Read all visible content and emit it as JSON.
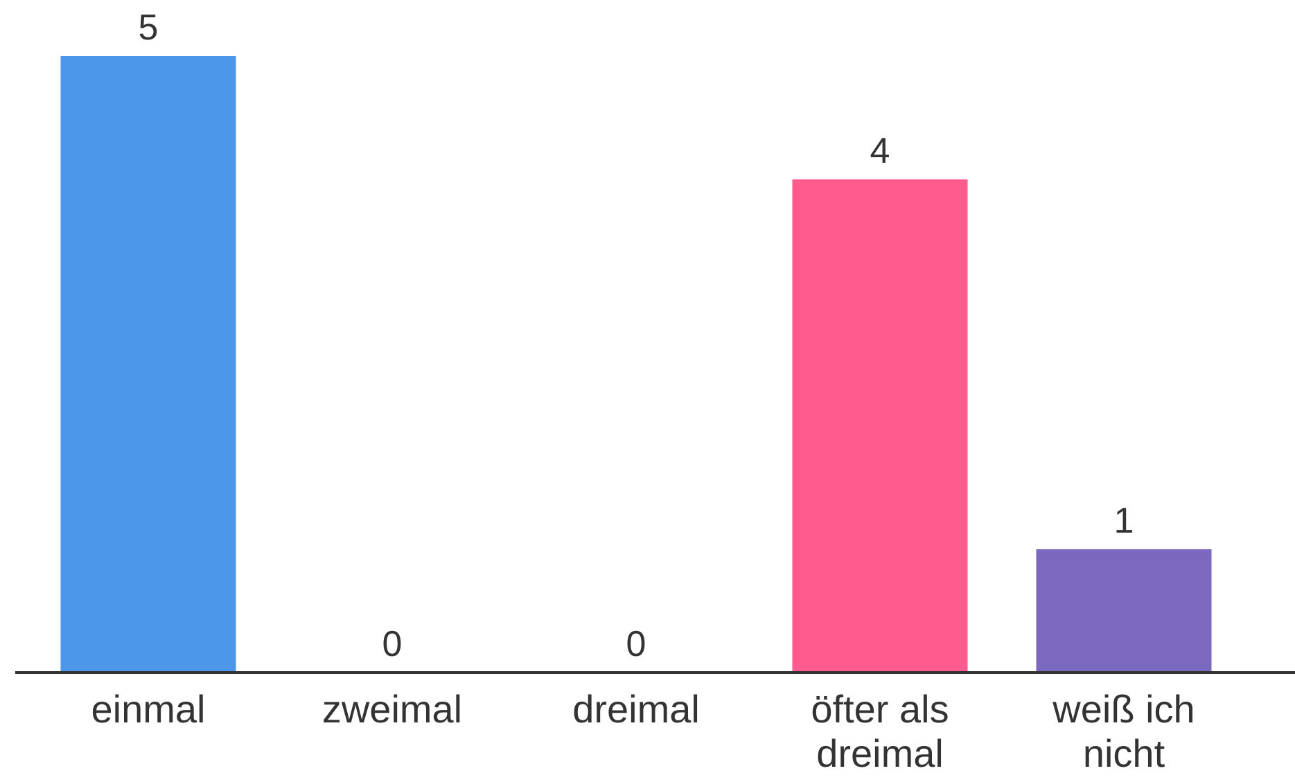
{
  "chart_data": {
    "type": "bar",
    "categories": [
      [
        "einmal"
      ],
      [
        "zweimal"
      ],
      [
        "dreimal"
      ],
      [
        "öfter als",
        "dreimal"
      ],
      [
        "weiß ich",
        "nicht"
      ]
    ],
    "values": [
      5,
      0,
      0,
      4,
      1
    ],
    "colors": [
      "#4c97ea",
      "#4c97ea",
      "#4c97ea",
      "#ff5b8f",
      "#7b68bf"
    ],
    "title": "",
    "xlabel": "",
    "ylabel": "",
    "ylim": [
      0,
      5
    ],
    "grid": false,
    "axis_color": "#333333"
  }
}
